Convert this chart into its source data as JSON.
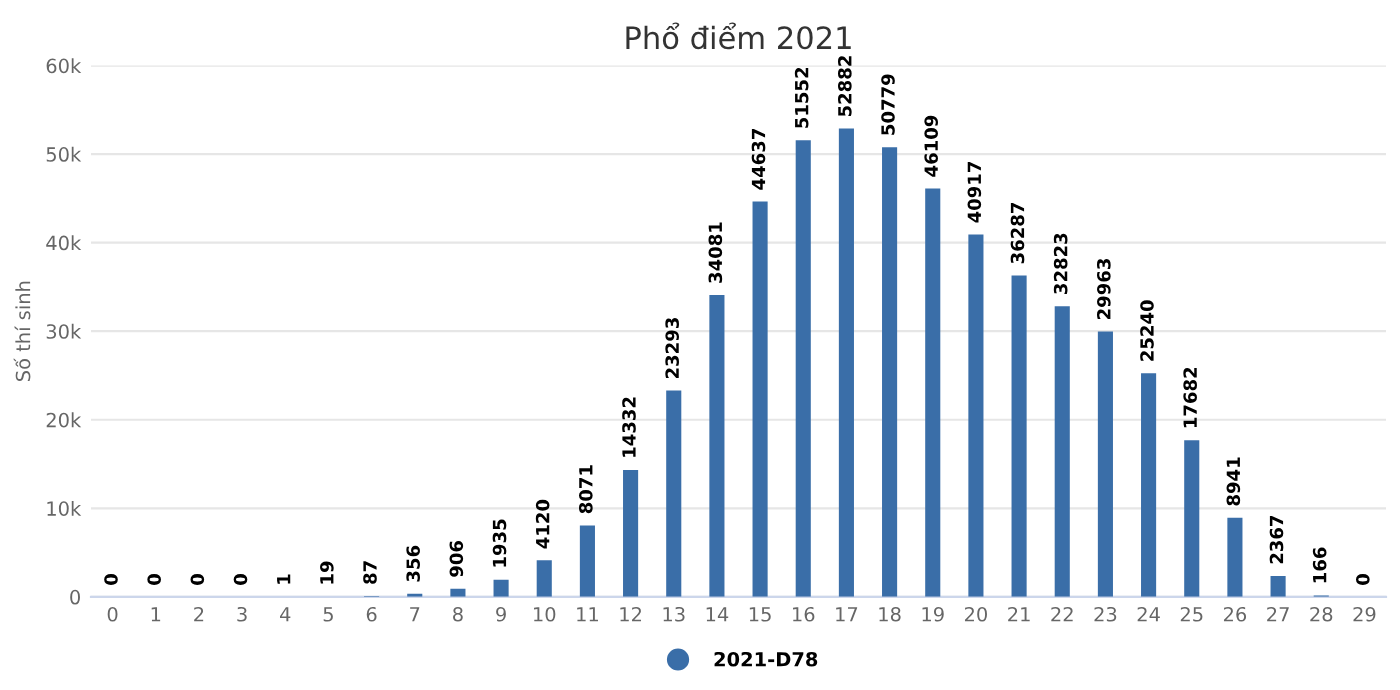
{
  "chart_data": {
    "type": "bar",
    "title": "Phổ điểm 2021",
    "ylabel": "Số thí sinh",
    "categories": [
      "0",
      "1",
      "2",
      "3",
      "4",
      "5",
      "6",
      "7",
      "8",
      "9",
      "10",
      "11",
      "12",
      "13",
      "14",
      "15",
      "16",
      "17",
      "18",
      "19",
      "20",
      "21",
      "22",
      "23",
      "24",
      "25",
      "26",
      "27",
      "28",
      "29"
    ],
    "series": [
      {
        "name": "2021-D78",
        "color": "#3a6ea8",
        "values": [
          0,
          0,
          0,
          0,
          1,
          19,
          87,
          356,
          906,
          1935,
          4120,
          8071,
          14332,
          23293,
          34081,
          44637,
          51552,
          52882,
          50779,
          46109,
          40917,
          36287,
          32823,
          29963,
          25240,
          17682,
          8941,
          2367,
          166,
          0
        ]
      }
    ],
    "ylim": [
      0,
      60000
    ],
    "yticks": [
      {
        "value": 0,
        "label": "0"
      },
      {
        "value": 10000,
        "label": "10k"
      },
      {
        "value": 20000,
        "label": "20k"
      },
      {
        "value": 30000,
        "label": "30k"
      },
      {
        "value": 40000,
        "label": "40k"
      },
      {
        "value": 50000,
        "label": "50k"
      },
      {
        "value": 60000,
        "label": "60k"
      }
    ],
    "grid": "y",
    "legend": "bottom",
    "data_labels": true
  }
}
